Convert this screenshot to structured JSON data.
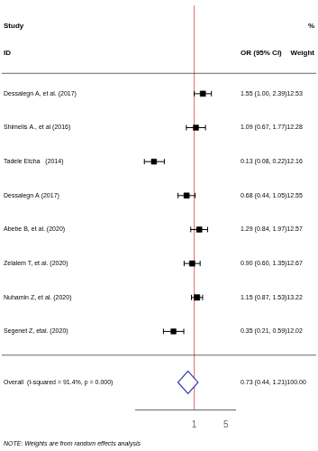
{
  "chart_data": {
    "type": "forest",
    "categories": [
      "Dessalegn A, et al. (2017)",
      "Shimelis A., et al (2016)",
      "Tadele Etcha   (2014)",
      "Dessalegn A (2017)",
      "Abebe B, et al. (2020)",
      "Zelalem T, et al. (2020)",
      "Nuhamin Z, et al. (2020)",
      "Segenet Z, etal. (2020)"
    ],
    "values": [
      1.55,
      1.09,
      0.13,
      0.68,
      1.29,
      0.9,
      1.15,
      0.35
    ],
    "ci_low": [
      1.0,
      0.67,
      0.08,
      0.44,
      0.84,
      0.6,
      0.87,
      0.21
    ],
    "ci_high": [
      2.39,
      1.77,
      0.22,
      1.05,
      1.97,
      1.35,
      1.53,
      0.59
    ],
    "weights": [
      12.53,
      12.28,
      12.16,
      12.55,
      12.57,
      12.67,
      13.22,
      12.02
    ],
    "value_labels": [
      "1.55 (1.00, 2.39)12.53",
      "1.09 (0.67, 1.77)12.28",
      "0.13 (0.08, 0.22)12.16",
      "0.68 (0.44, 1.05)12.55",
      "1.29 (0.84, 1.97)12.57",
      "0.90 (0.60, 1.35)12.67",
      "1.15 (0.87, 1.53)13.22",
      "0.35 (0.21, 0.59)12.02"
    ],
    "color": "black",
    "overall": {
      "label": "Overall  (I-squared = 91.4%, p = 0.000)",
      "value": 0.73,
      "ci_low": 0.44,
      "ci_high": 1.21,
      "weight": 100.0,
      "value_label": "0.73 (0.44, 1.21)100.00",
      "color": "#3333bb"
    },
    "reference_line": {
      "value": 1,
      "color": "#e08080"
    },
    "headers": {
      "study": "Study",
      "id": "ID",
      "pct": "%",
      "or": "OR (95% CI)",
      "weight": "Weight"
    },
    "note": "NOTE: Weights are from random effects analysis",
    "log": "x",
    "xlim": [
      0.05011872336272722,
      7.943282347242816
    ],
    "xticks": [
      1,
      5
    ],
    "grid": false,
    "tick_labels": "x"
  }
}
